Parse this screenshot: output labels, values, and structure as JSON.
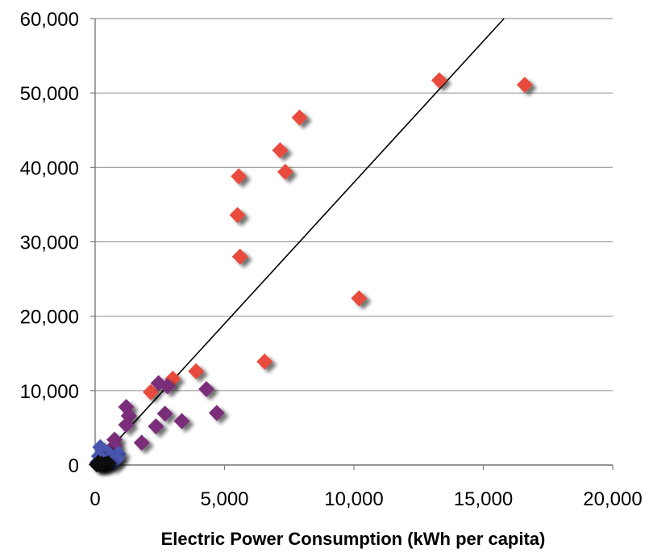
{
  "chart_data": {
    "type": "scatter",
    "title": "",
    "xlabel": "Electric Power Consumption (kWh per capita)",
    "ylabel": "",
    "xlim": [
      0,
      20000
    ],
    "ylim": [
      0,
      60000
    ],
    "x_ticks": [
      0,
      5000,
      10000,
      15000,
      20000
    ],
    "x_tick_labels": [
      "0",
      "5,000",
      "10,000",
      "15,000",
      "20,000"
    ],
    "y_ticks": [
      0,
      10000,
      20000,
      30000,
      40000,
      50000,
      60000
    ],
    "y_tick_labels": [
      "0",
      "10,000",
      "20,000",
      "30,000",
      "40,000",
      "50,000",
      "60,000"
    ],
    "grid": "horizontal",
    "legend": "none",
    "trend_line": {
      "x": [
        0,
        15800
      ],
      "y": [
        0,
        60000
      ],
      "color": "#000000"
    },
    "series": [
      {
        "color": "#e84c3d",
        "marker": "diamond",
        "points": [
          [
            13300,
            51700
          ],
          [
            16600,
            51100
          ],
          [
            7900,
            46700
          ],
          [
            7150,
            42300
          ],
          [
            7350,
            39400
          ],
          [
            5550,
            38800
          ],
          [
            5500,
            33600
          ],
          [
            5600,
            28000
          ],
          [
            10200,
            22400
          ],
          [
            6550,
            13900
          ],
          [
            3900,
            12600
          ],
          [
            3000,
            11600
          ],
          [
            2150,
            9800
          ]
        ]
      },
      {
        "color": "#7a2e7a",
        "marker": "diamond",
        "points": [
          [
            2450,
            11000
          ],
          [
            2800,
            10600
          ],
          [
            4300,
            10200
          ],
          [
            1200,
            7800
          ],
          [
            1300,
            6600
          ],
          [
            2700,
            6900
          ],
          [
            4700,
            7000
          ],
          [
            1200,
            5400
          ],
          [
            3350,
            5900
          ],
          [
            2350,
            5200
          ],
          [
            750,
            3400
          ],
          [
            1800,
            3000
          ],
          [
            750,
            2600
          ]
        ]
      },
      {
        "color": "#4a56b0",
        "marker": "diamond",
        "points": [
          [
            200,
            2400
          ],
          [
            350,
            1900
          ],
          [
            500,
            1600
          ],
          [
            900,
            1500
          ],
          [
            150,
            1200
          ],
          [
            600,
            1000
          ],
          [
            250,
            700
          ],
          [
            450,
            500
          ],
          [
            100,
            400
          ],
          [
            700,
            300
          ],
          [
            300,
            200
          ],
          [
            850,
            900
          ]
        ]
      },
      {
        "color": "#111111",
        "marker": "diamond",
        "points": [
          [
            120,
            300
          ],
          [
            250,
            150
          ],
          [
            380,
            100
          ],
          [
            60,
            80
          ],
          [
            500,
            250
          ],
          [
            180,
            40
          ]
        ]
      }
    ]
  }
}
